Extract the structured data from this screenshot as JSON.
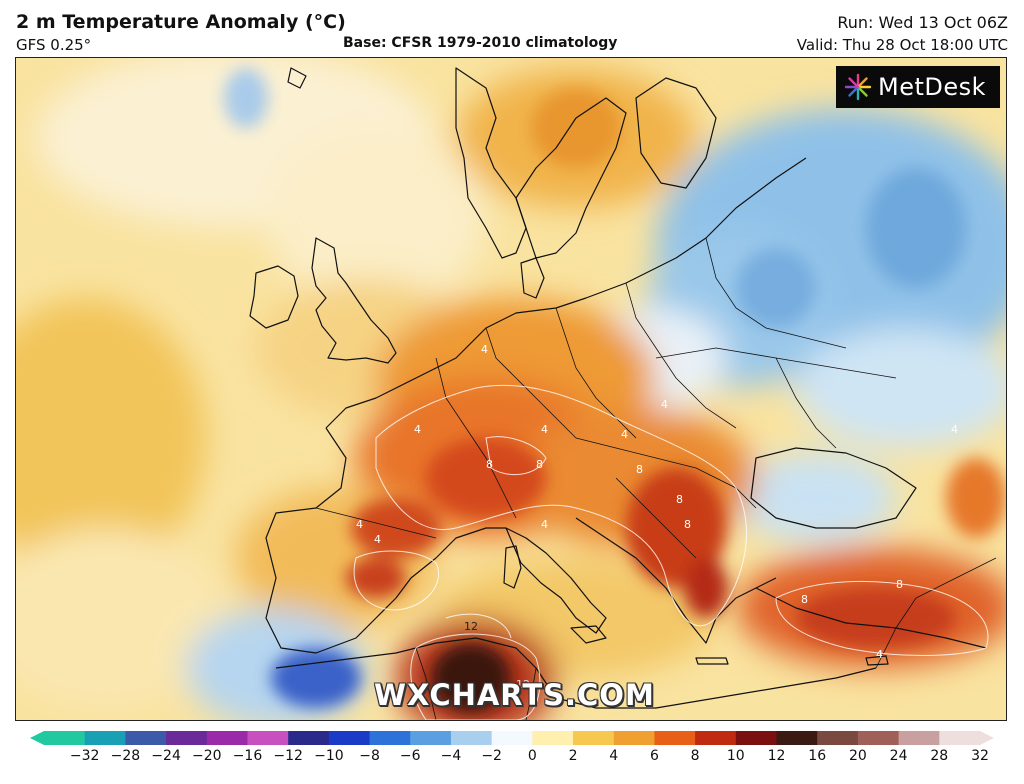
{
  "header": {
    "title": "2 m Temperature Anomaly (°C)",
    "model": "GFS 0.25°",
    "base": "Base: CFSR 1979-2010 climatology",
    "run": "Run: Wed 13 Oct 06Z",
    "valid": "Valid: Thu 28 Oct 18:00 UTC"
  },
  "logo": {
    "text": "MetDesk"
  },
  "watermark": "WXCHARTS.COM",
  "map": {
    "region": "Europe, North Africa and Middle East",
    "contour_labels": [
      "4",
      "4",
      "4",
      "4",
      "8",
      "8",
      "4",
      "8",
      "4",
      "8",
      "4",
      "8",
      "8",
      "8",
      "4",
      "12",
      "12",
      "4",
      "4"
    ]
  },
  "legend": {
    "ticks": [
      "−32",
      "−28",
      "−24",
      "−20",
      "−16",
      "−12",
      "−10",
      "−8",
      "−6",
      "−4",
      "−2",
      "0",
      "2",
      "4",
      "6",
      "8",
      "10",
      "12",
      "16",
      "20",
      "24",
      "28",
      "32"
    ],
    "colors": [
      "#22c8a0",
      "#1aa0b4",
      "#3d5aa8",
      "#6a2a9a",
      "#9a2aa8",
      "#c84fc0",
      "#2a2a8a",
      "#1a3ac8",
      "#2c72d8",
      "#5aa0e0",
      "#a8d0ee",
      "#f4f8ff",
      "#fff0b0",
      "#f7c850",
      "#f0a030",
      "#e86018",
      "#c02a10",
      "#7a1010",
      "#3a1a12",
      "#7a4a40",
      "#a0605a",
      "#c8a0a0",
      "#eedede"
    ]
  }
}
